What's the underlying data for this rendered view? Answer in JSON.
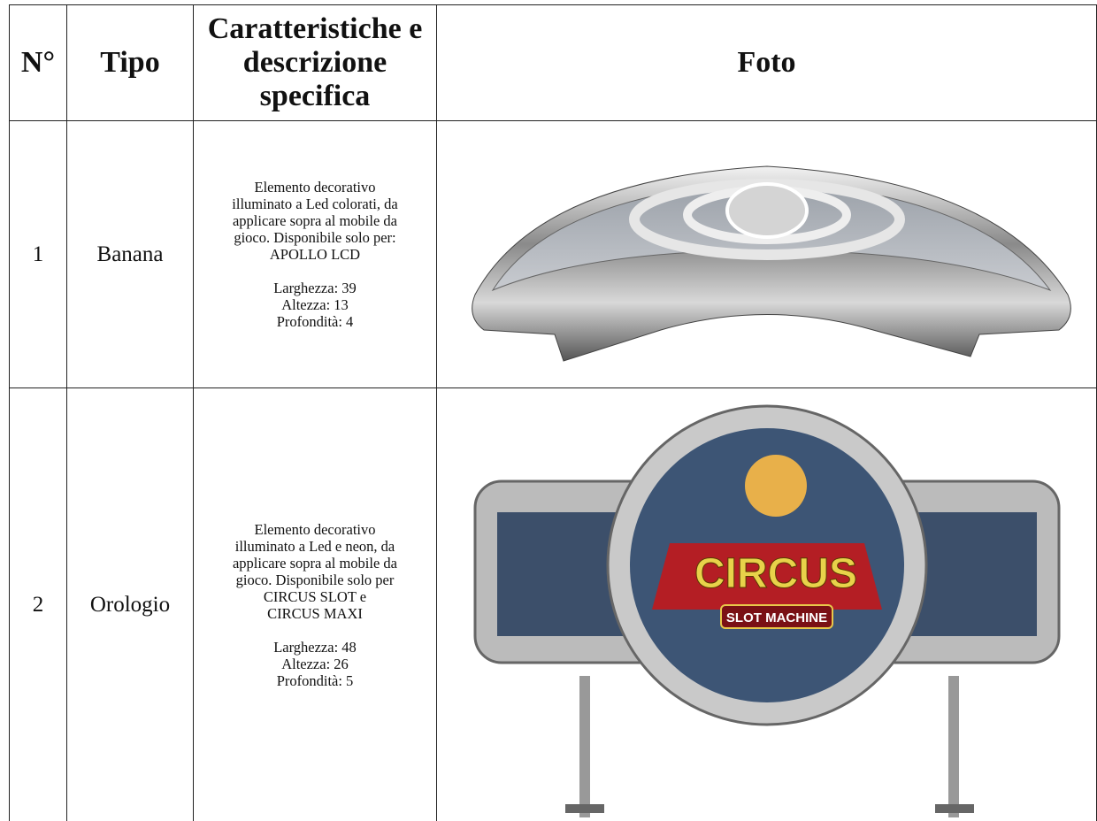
{
  "table": {
    "header": [
      "N°",
      "Tipo",
      "Caratteristiche e descrizione specifica",
      "Foto"
    ],
    "rows": [
      {
        "number": "1",
        "type": "Banana",
        "description": [
          "Elemento decorativo",
          "illuminato a Led colorati, da",
          "applicare sopra al mobile da",
          "gioco. Disponibile solo per:",
          "APOLLO LCD"
        ],
        "dimensions": [
          "Larghezza: 39",
          "Altezza: 13",
          "Profondità: 4"
        ]
      },
      {
        "number": "2",
        "type": "Orologio",
        "description": [
          "Elemento decorativo",
          "illuminato a Led e neon, da",
          "applicare sopra al mobile da",
          "gioco. Disponibile solo per",
          "CIRCUS SLOT e",
          "CIRCUS MAXI"
        ],
        "dimensions": [
          "Larghezza: 48",
          "Altezza: 26",
          "Profondità: 5"
        ],
        "photo_text": [
          "CIRCUS",
          "SLOT MACHINE"
        ]
      }
    ]
  }
}
